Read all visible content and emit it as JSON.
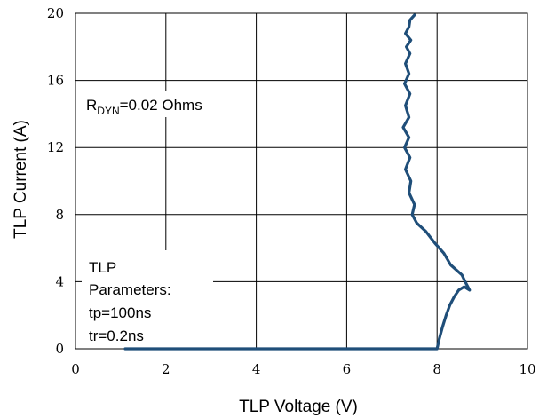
{
  "chart_data": {
    "type": "line",
    "xlabel": "TLP Voltage (V)",
    "ylabel": "TLP Current (A)",
    "xlim": [
      0,
      10
    ],
    "ylim": [
      0,
      20
    ],
    "xticks": [
      0,
      2,
      4,
      6,
      8,
      10
    ],
    "yticks": [
      0,
      4,
      8,
      12,
      16,
      20
    ],
    "grid": true,
    "annotations": {
      "rdyn_main": "R",
      "rdyn_sub": "DYN",
      "rdyn_rest": "=0.02 Ohms",
      "tlp_lines": [
        "TLP",
        "Parameters:",
        "tp=100ns",
        "tr=0.2ns"
      ]
    },
    "series": [
      {
        "color": "#1f4e79",
        "x": [
          1.1,
          2.0,
          4.0,
          6.0,
          7.6,
          8.0,
          8.05,
          8.12,
          8.2,
          8.28,
          8.38,
          8.48,
          8.6,
          8.72,
          8.62,
          8.55,
          8.3,
          8.15,
          7.95,
          7.75,
          7.55,
          7.45,
          7.5,
          7.38,
          7.42,
          7.3,
          7.4,
          7.28,
          7.38,
          7.25,
          7.38,
          7.3,
          7.4,
          7.28,
          7.38,
          7.3,
          7.4,
          7.32,
          7.42,
          7.3,
          7.38,
          7.4,
          7.5
        ],
        "y": [
          0,
          0,
          0,
          0,
          0,
          0,
          0.6,
          1.3,
          2.0,
          2.6,
          3.1,
          3.5,
          3.7,
          3.5,
          4.0,
          4.4,
          5.0,
          5.7,
          6.3,
          7.0,
          7.5,
          8.0,
          8.6,
          9.3,
          10.0,
          10.7,
          11.4,
          12.0,
          12.6,
          13.2,
          13.8,
          14.5,
          15.2,
          15.8,
          16.4,
          17.0,
          17.6,
          18.0,
          18.4,
          18.8,
          19.2,
          19.6,
          19.9
        ]
      }
    ]
  }
}
